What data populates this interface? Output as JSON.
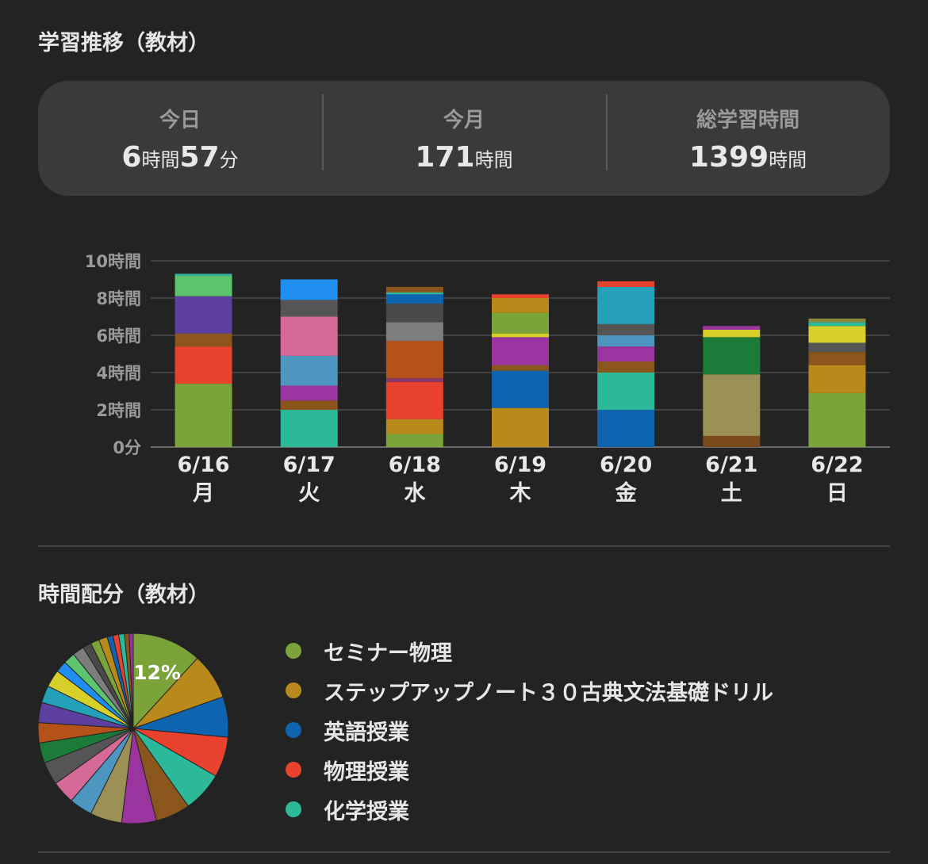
{
  "sections": {
    "trend_title": "学習推移（教材）",
    "distribution_title": "時間配分（教材）"
  },
  "stats": {
    "today": {
      "label": "今日",
      "hours": "6",
      "hours_unit": "時間",
      "minutes": "57",
      "minutes_unit": "分"
    },
    "month": {
      "label": "今月",
      "value": "171",
      "unit": "時間"
    },
    "total": {
      "label": "総学習時間",
      "value": "1399",
      "unit": "時間"
    }
  },
  "chart_data": [
    {
      "type": "bar",
      "stacked": true,
      "categories": [
        "6/16",
        "6/17",
        "6/18",
        "6/19",
        "6/20",
        "6/21",
        "6/22"
      ],
      "weekdays": [
        "月",
        "火",
        "水",
        "木",
        "金",
        "土",
        "日"
      ],
      "y_ticks": [
        {
          "value": 10,
          "label": "10時間"
        },
        {
          "value": 8,
          "label": "8時間"
        },
        {
          "value": 6,
          "label": "6時間"
        },
        {
          "value": 4,
          "label": "4時間"
        },
        {
          "value": 2,
          "label": "2時間"
        },
        {
          "value": 0,
          "label": "0分"
        }
      ],
      "ylim": [
        0,
        10
      ],
      "grid": true,
      "segments": [
        [
          {
            "value": 3.4,
            "color": "#7aa33a"
          },
          {
            "value": 2.0,
            "color": "#e8422e"
          },
          {
            "value": 0.7,
            "color": "#8a561d"
          },
          {
            "value": 2.0,
            "color": "#5c3f9e"
          },
          {
            "value": 1.1,
            "color": "#5cc46a"
          },
          {
            "value": 0.1,
            "color": "#2fb7a8"
          }
        ],
        [
          {
            "value": 2.0,
            "color": "#2bb99a"
          },
          {
            "value": 0.5,
            "color": "#8a561d"
          },
          {
            "value": 0.8,
            "color": "#9a35a0"
          },
          {
            "value": 1.6,
            "color": "#4c96c0"
          },
          {
            "value": 2.1,
            "color": "#d56a98"
          },
          {
            "value": 0.9,
            "color": "#555555"
          },
          {
            "value": 1.1,
            "color": "#1e8ef0"
          }
        ],
        [
          {
            "value": 0.7,
            "color": "#7aa33a"
          },
          {
            "value": 0.8,
            "color": "#b88a1c"
          },
          {
            "value": 2.0,
            "color": "#e8422e"
          },
          {
            "value": 0.2,
            "color": "#8c3a6c"
          },
          {
            "value": 2.0,
            "color": "#b5521a"
          },
          {
            "value": 1.0,
            "color": "#7d7d7d"
          },
          {
            "value": 1.0,
            "color": "#4a4a4a"
          },
          {
            "value": 0.5,
            "color": "#0f64b0"
          },
          {
            "value": 0.1,
            "color": "#2fb7a8"
          },
          {
            "value": 0.3,
            "color": "#8a561d"
          }
        ],
        [
          {
            "value": 2.1,
            "color": "#b88a1c"
          },
          {
            "value": 2.0,
            "color": "#0f64b0"
          },
          {
            "value": 0.3,
            "color": "#8a561d"
          },
          {
            "value": 1.5,
            "color": "#9a35a0"
          },
          {
            "value": 0.2,
            "color": "#d9cf2a"
          },
          {
            "value": 1.1,
            "color": "#7aa33a"
          },
          {
            "value": 0.8,
            "color": "#b88a1c"
          },
          {
            "value": 0.2,
            "color": "#e8422e"
          }
        ],
        [
          {
            "value": 2.0,
            "color": "#0f64b0"
          },
          {
            "value": 2.0,
            "color": "#2bb99a"
          },
          {
            "value": 0.6,
            "color": "#8a561d"
          },
          {
            "value": 0.8,
            "color": "#9a35a0"
          },
          {
            "value": 0.6,
            "color": "#4c96c0"
          },
          {
            "value": 0.6,
            "color": "#555555"
          },
          {
            "value": 2.0,
            "color": "#24a0b8"
          },
          {
            "value": 0.3,
            "color": "#e8422e"
          }
        ],
        [
          {
            "value": 0.6,
            "color": "#7a4a1c"
          },
          {
            "value": 3.3,
            "color": "#9a8f55"
          },
          {
            "value": 2.0,
            "color": "#1b7c3a"
          },
          {
            "value": 0.4,
            "color": "#d9cf2a"
          },
          {
            "value": 0.2,
            "color": "#9a35a0"
          }
        ],
        [
          {
            "value": 2.9,
            "color": "#7aa33a"
          },
          {
            "value": 1.5,
            "color": "#b88a1c"
          },
          {
            "value": 0.7,
            "color": "#8a561d"
          },
          {
            "value": 0.5,
            "color": "#555555"
          },
          {
            "value": 0.9,
            "color": "#d9cf2a"
          },
          {
            "value": 0.2,
            "color": "#2bb99a"
          },
          {
            "value": 0.2,
            "color": "#8a8a3a"
          }
        ]
      ]
    },
    {
      "type": "pie",
      "label_shown": "12%",
      "legend": [
        {
          "name": "セミナー物理",
          "color": "#7aa33a"
        },
        {
          "name": "ステップアップノート３０古典文法基礎ドリル",
          "color": "#b88a1c"
        },
        {
          "name": "英語授業",
          "color": "#0f64b0"
        },
        {
          "name": "物理授業",
          "color": "#e8422e"
        },
        {
          "name": "化学授業",
          "color": "#2bb99a"
        }
      ],
      "slices": [
        {
          "value": 12,
          "color": "#7aa33a"
        },
        {
          "value": 8,
          "color": "#b88a1c"
        },
        {
          "value": 7,
          "color": "#0f64b0"
        },
        {
          "value": 7,
          "color": "#e8422e"
        },
        {
          "value": 7,
          "color": "#2bb99a"
        },
        {
          "value": 6,
          "color": "#8a561d"
        },
        {
          "value": 6,
          "color": "#9a35a0"
        },
        {
          "value": 5.5,
          "color": "#9a8f55"
        },
        {
          "value": 4,
          "color": "#4c96c0"
        },
        {
          "value": 4,
          "color": "#d56a98"
        },
        {
          "value": 4,
          "color": "#555555"
        },
        {
          "value": 3.5,
          "color": "#1b7c3a"
        },
        {
          "value": 3.5,
          "color": "#b5521a"
        },
        {
          "value": 3.5,
          "color": "#5c3f9e"
        },
        {
          "value": 3,
          "color": "#24a0b8"
        },
        {
          "value": 3,
          "color": "#d9cf2a"
        },
        {
          "value": 2,
          "color": "#1e8ef0"
        },
        {
          "value": 2,
          "color": "#5cc46a"
        },
        {
          "value": 2,
          "color": "#7d7d7d"
        },
        {
          "value": 1.5,
          "color": "#4a4a4a"
        },
        {
          "value": 1.5,
          "color": "#7aa33a"
        },
        {
          "value": 1.5,
          "color": "#b88a1c"
        },
        {
          "value": 1,
          "color": "#0f64b0"
        },
        {
          "value": 1,
          "color": "#e8422e"
        },
        {
          "value": 1,
          "color": "#2bb99a"
        },
        {
          "value": 0.8,
          "color": "#8a561d"
        },
        {
          "value": 0.7,
          "color": "#9a35a0"
        }
      ]
    }
  ]
}
